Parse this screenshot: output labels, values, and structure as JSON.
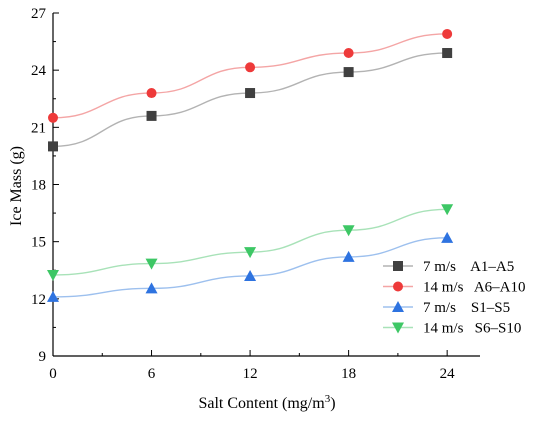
{
  "chart_data": {
    "type": "line",
    "title": "",
    "x": [
      0,
      6,
      12,
      18,
      24
    ],
    "xlabel": "Salt Content (mg/m",
    "xlabel_sup": "3",
    "xlabel_end": ")",
    "ylabel": "Ice Mass (g)",
    "xlim": [
      0,
      26
    ],
    "ylim": [
      9,
      27
    ],
    "xticks": [
      0,
      6,
      12,
      18,
      24
    ],
    "yticks": [
      9,
      12,
      15,
      18,
      21,
      24,
      27
    ],
    "grid": false,
    "legend_position": "right",
    "series": [
      {
        "name": "7 m/s    A1–A5",
        "color": "#404040",
        "line_color": "#b3b3b3",
        "marker": "square",
        "values": [
          20.0,
          21.6,
          22.8,
          23.9,
          24.9
        ]
      },
      {
        "name": "14 m/s   A6–A10",
        "color": "#ee3a3a",
        "line_color": "#f4a5a5",
        "marker": "circle",
        "values": [
          21.5,
          22.8,
          24.15,
          24.9,
          25.9
        ]
      },
      {
        "name": "7 m/s    S1–S5",
        "color": "#2e73e0",
        "line_color": "#9dc0ee",
        "marker": "triangle-up",
        "values": [
          12.1,
          12.55,
          13.2,
          14.2,
          15.2
        ]
      },
      {
        "name": "14 m/s   S6–S10",
        "color": "#3dc765",
        "line_color": "#a8e2b8",
        "marker": "triangle-down",
        "values": [
          13.25,
          13.85,
          14.45,
          15.6,
          16.7
        ]
      }
    ]
  }
}
